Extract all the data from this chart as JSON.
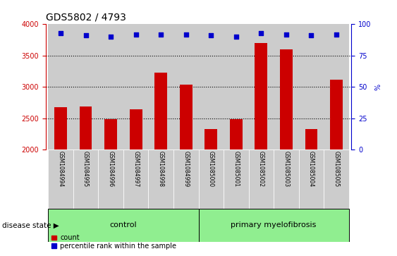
{
  "title": "GDS5802 / 4793",
  "samples": [
    "GSM1084994",
    "GSM1084995",
    "GSM1084996",
    "GSM1084997",
    "GSM1084998",
    "GSM1084999",
    "GSM1085000",
    "GSM1085001",
    "GSM1085002",
    "GSM1085003",
    "GSM1085004",
    "GSM1085005"
  ],
  "counts": [
    2680,
    2690,
    2490,
    2640,
    3230,
    3040,
    2330,
    2490,
    3700,
    3600,
    2330,
    3120
  ],
  "percentile_ranks": [
    93,
    91,
    90,
    92,
    92,
    92,
    91,
    90,
    93,
    92,
    91,
    92
  ],
  "bar_color": "#cc0000",
  "dot_color": "#0000cc",
  "ylim_left": [
    2000,
    4000
  ],
  "ylim_right": [
    0,
    100
  ],
  "yticks_left": [
    2000,
    2500,
    3000,
    3500,
    4000
  ],
  "yticks_right": [
    0,
    25,
    50,
    75,
    100
  ],
  "grid_lines": [
    2500,
    3000,
    3500
  ],
  "control_count": 6,
  "myelofibrosis_count": 6,
  "control_label": "control",
  "myelofibrosis_label": "primary myelofibrosis",
  "disease_state_label": "disease state",
  "legend_count_label": "count",
  "legend_percentile_label": "percentile rank within the sample",
  "group_bg_color": "#90ee90",
  "xlabel_bg_color": "#cccccc",
  "bar_width": 0.5,
  "tick_fontsize": 7,
  "label_fontsize": 5.5,
  "group_fontsize": 8,
  "legend_fontsize": 7,
  "title_fontsize": 10
}
